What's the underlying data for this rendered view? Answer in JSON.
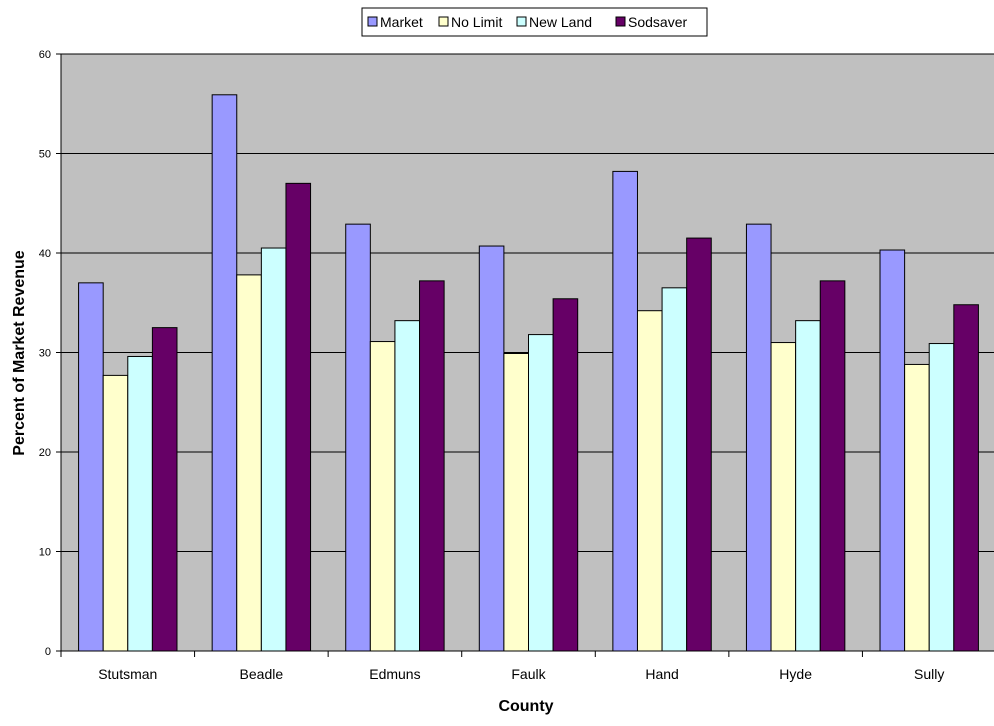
{
  "chart_data": {
    "type": "bar",
    "title": "",
    "xlabel": "County",
    "ylabel": "Percent of Market Revenue",
    "categories": [
      "Stutsman",
      "Beadle",
      "Edmuns",
      "Faulk",
      "Hand",
      "Hyde",
      "Sully"
    ],
    "series": [
      {
        "name": "Market",
        "color": "#9999ff",
        "values": [
          37.0,
          55.9,
          42.9,
          40.7,
          48.2,
          42.9,
          40.3
        ]
      },
      {
        "name": "No Limit",
        "color": "#ffffcc",
        "values": [
          27.7,
          37.8,
          31.1,
          29.9,
          34.2,
          31.0,
          28.8
        ]
      },
      {
        "name": "New Land",
        "color": "#ccffff",
        "values": [
          29.6,
          40.5,
          33.2,
          31.8,
          36.5,
          33.2,
          30.9
        ]
      },
      {
        "name": "Sodsaver",
        "color": "#660066",
        "values": [
          32.5,
          47.0,
          37.2,
          35.4,
          41.5,
          37.2,
          34.8
        ]
      }
    ],
    "ylim": [
      0,
      60
    ],
    "yticks": [
      0,
      10,
      20,
      30,
      40,
      50,
      60
    ],
    "grid": true,
    "plot_background": "#c0c0c0",
    "legend_position": "top-center"
  }
}
